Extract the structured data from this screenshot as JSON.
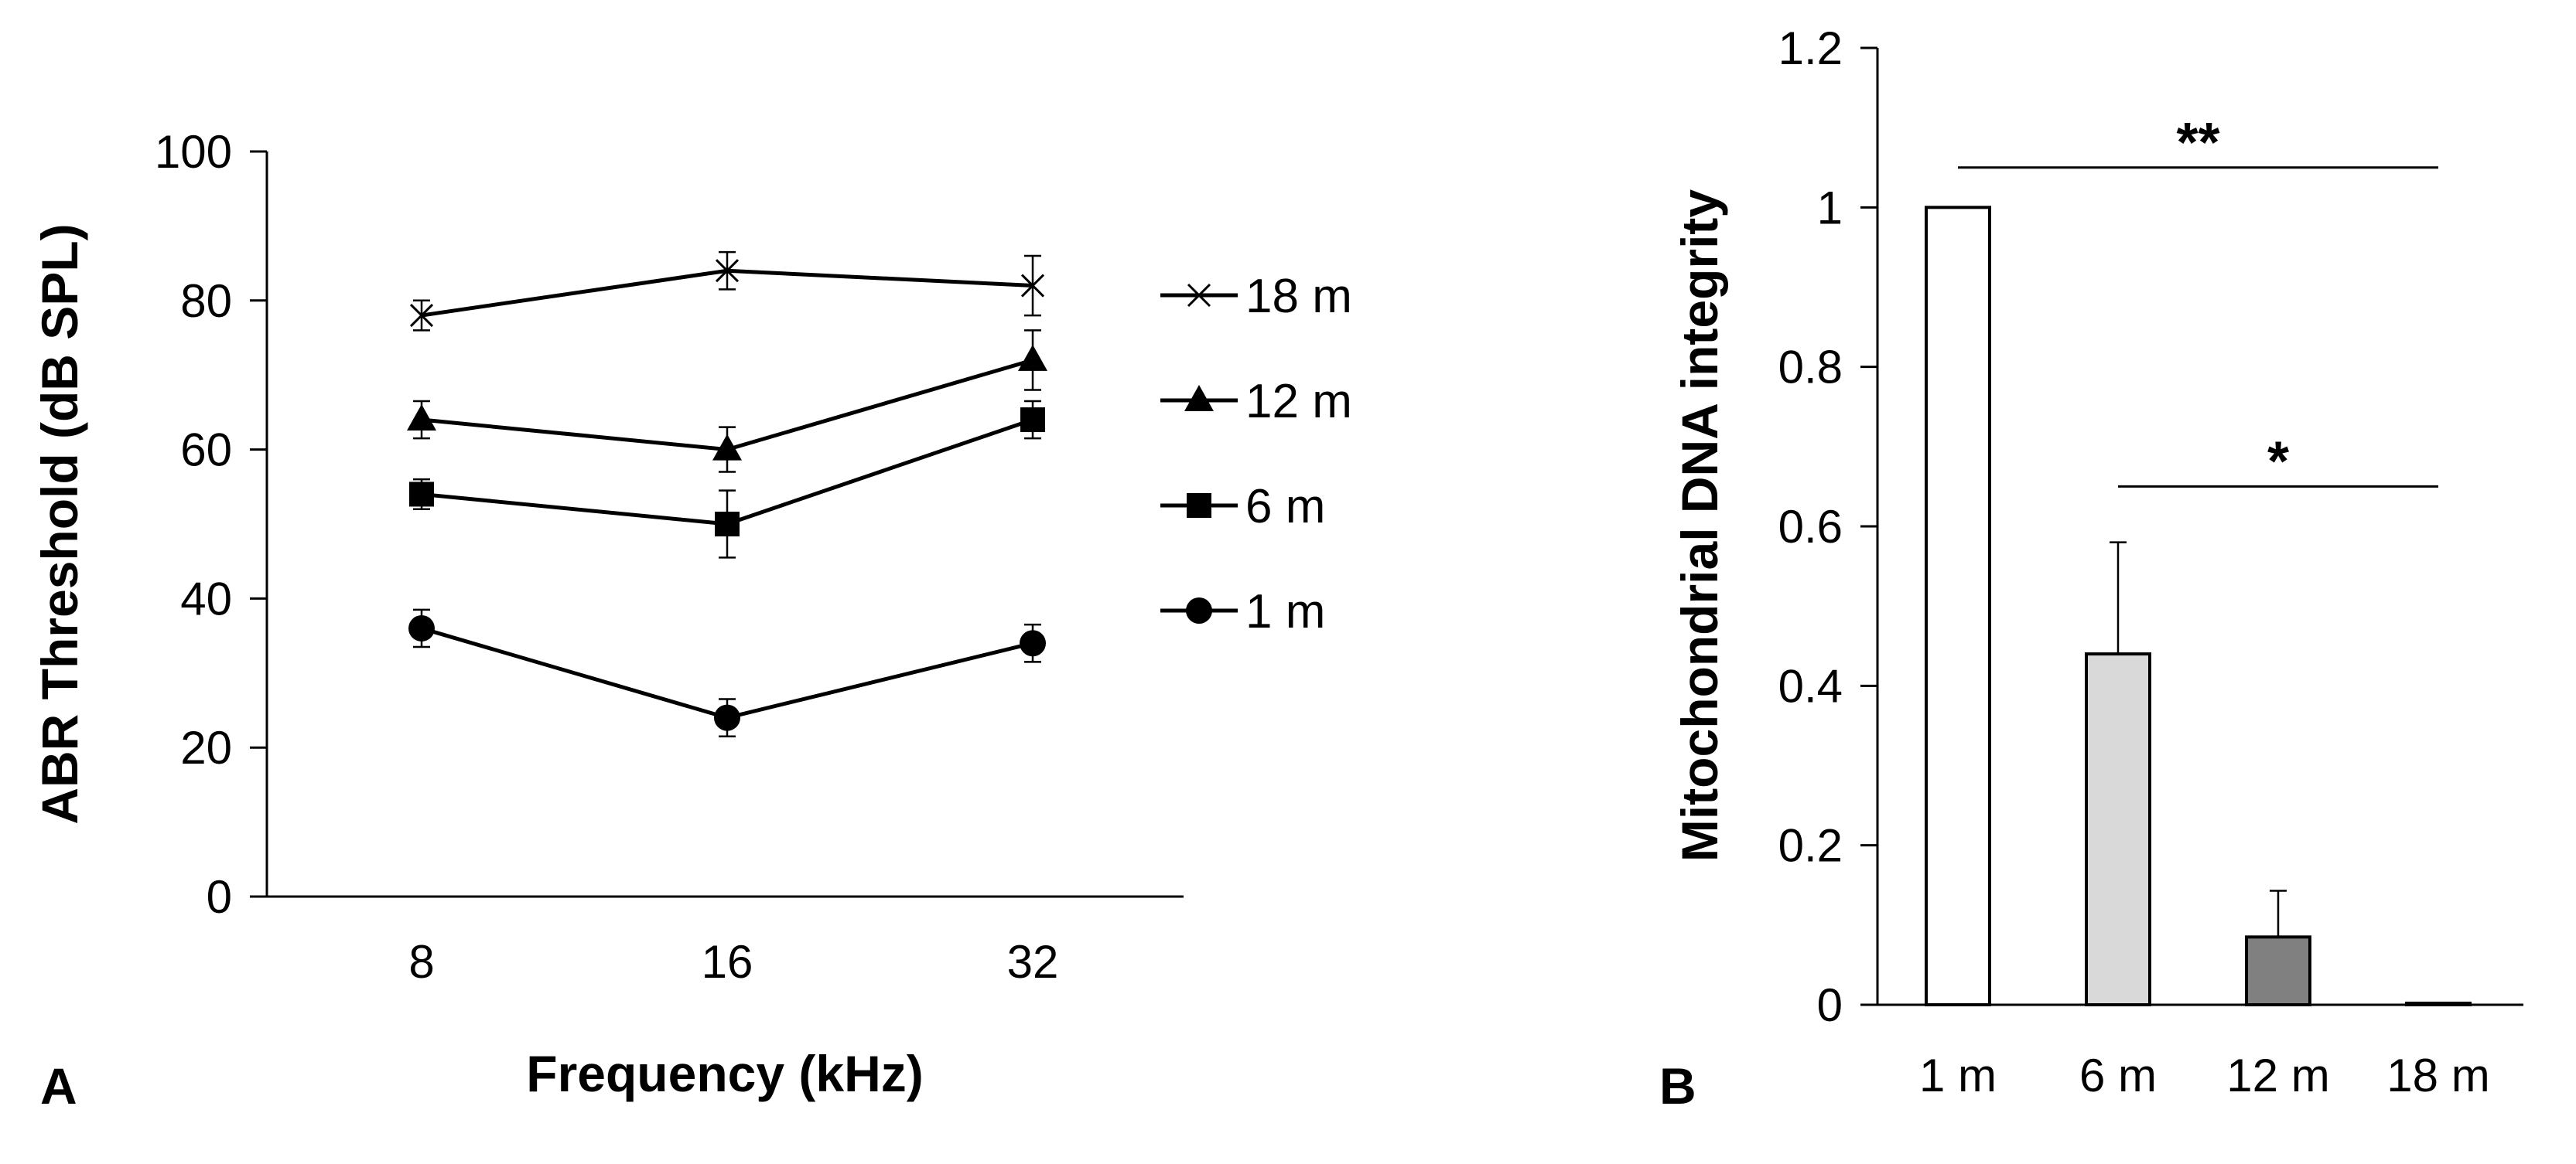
{
  "chart_data": [
    {
      "type": "line",
      "panel_label": "A",
      "xlabel": "Frequency (kHz)",
      "ylabel": "ABR Threshold (dB SPL)",
      "categories": [
        "8",
        "16",
        "32"
      ],
      "ylim": [
        0,
        100
      ],
      "yticks": [
        "0",
        "20",
        "40",
        "60",
        "80",
        "100"
      ],
      "legend_position": "right",
      "series": [
        {
          "name": "18 m",
          "marker": "x",
          "values": [
            78,
            84,
            82
          ],
          "errors": [
            2,
            2.5,
            4
          ]
        },
        {
          "name": "12 m",
          "marker": "triangle",
          "values": [
            64,
            60,
            72
          ],
          "errors": [
            2.5,
            3,
            4
          ]
        },
        {
          "name": "6 m",
          "marker": "square",
          "values": [
            54,
            50,
            64
          ],
          "errors": [
            2,
            4.5,
            2.5
          ]
        },
        {
          "name": "1 m",
          "marker": "circle",
          "values": [
            36,
            24,
            34
          ],
          "errors": [
            2.5,
            2.5,
            2.5
          ]
        }
      ]
    },
    {
      "type": "bar",
      "panel_label": "B",
      "xlabel": "",
      "ylabel": "Mitochondrial DNA integrity",
      "categories": [
        "1 m",
        "6 m",
        "12 m",
        "18 m"
      ],
      "ylim": [
        0,
        1.2
      ],
      "yticks": [
        "0",
        "0.2",
        "0.4",
        "0.6",
        "0.8",
        "1",
        "1.2"
      ],
      "values": [
        1.0,
        0.44,
        0.085,
        0.002
      ],
      "errors": [
        0,
        0.14,
        0.058,
        0
      ],
      "colors": [
        "#ffffff",
        "#d9d9d9",
        "#808080",
        "#ffffff"
      ],
      "significance": [
        {
          "from": "1 m",
          "to": "18 m",
          "y": 1.05,
          "label": "**"
        },
        {
          "from": "6 m",
          "to": "18 m",
          "y": 0.65,
          "label": "*"
        }
      ]
    }
  ]
}
